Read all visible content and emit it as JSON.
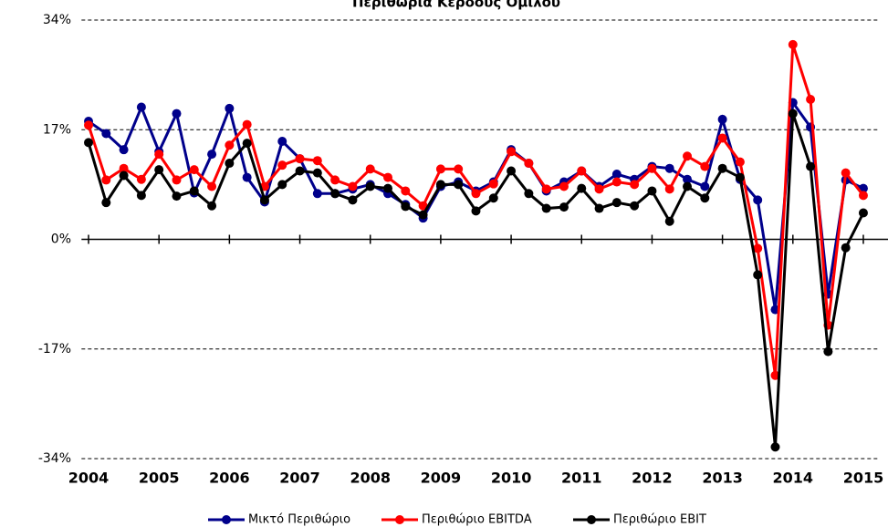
{
  "chart_data": {
    "type": "line",
    "title": "Περιθώρια Κέρδους Ομίλου",
    "x": [
      2004,
      2004.25,
      2004.5,
      2004.75,
      2005,
      2005.25,
      2005.5,
      2005.75,
      2006,
      2006.25,
      2006.5,
      2006.75,
      2007,
      2007.25,
      2007.5,
      2007.75,
      2008,
      2008.25,
      2008.5,
      2008.75,
      2009,
      2009.25,
      2009.5,
      2009.75,
      2010,
      2010.25,
      2010.5,
      2010.75,
      2011,
      2011.25,
      2011.5,
      2011.75,
      2012,
      2012.25,
      2012.5,
      2012.75,
      2013,
      2013.25,
      2013.5,
      2013.75,
      2014,
      2014.25,
      2014.5,
      2014.75,
      2015
    ],
    "series": [
      {
        "name": "Μικτό Περιθώριο",
        "color": "#00008b",
        "values": [
          18.3,
          16.4,
          13.9,
          20.5,
          13.6,
          19.5,
          7.2,
          13.2,
          20.3,
          9.6,
          5.8,
          15.2,
          12.5,
          7.1,
          7.1,
          7.8,
          8.5,
          7.1,
          5.4,
          3.3,
          8.2,
          8.9,
          7.5,
          8.9,
          13.9,
          11.8,
          7.5,
          8.9,
          10.6,
          8.2,
          10.1,
          9.3,
          11.3,
          11.0,
          9.3,
          8.2,
          18.6,
          9.3,
          6.1,
          -10.9,
          21.2,
          17.4,
          -8.5,
          9.2,
          7.9
        ]
      },
      {
        "name": "Περιθώριο EBITDA",
        "color": "#ff0000",
        "values": [
          17.7,
          9.2,
          11.0,
          9.3,
          13.2,
          9.2,
          10.8,
          8.2,
          14.6,
          17.8,
          8.2,
          11.5,
          12.5,
          12.2,
          9.2,
          8.2,
          10.9,
          9.6,
          7.5,
          5.2,
          10.9,
          10.9,
          7.1,
          8.6,
          13.6,
          11.8,
          7.8,
          8.2,
          10.6,
          7.8,
          8.9,
          8.5,
          11.0,
          7.8,
          12.9,
          11.3,
          15.7,
          12.0,
          -1.4,
          -21.1,
          30.2,
          21.7,
          -13.3,
          10.3,
          6.8
        ]
      },
      {
        "name": "Περιθώριο EBIT",
        "color": "#000000",
        "values": [
          15.0,
          5.7,
          9.9,
          6.8,
          10.8,
          6.7,
          7.5,
          5.2,
          11.8,
          14.9,
          6.1,
          8.5,
          10.6,
          10.3,
          7.1,
          6.1,
          8.2,
          7.9,
          5.1,
          3.8,
          8.5,
          8.5,
          4.4,
          6.4,
          10.6,
          7.1,
          4.8,
          5.0,
          7.9,
          4.8,
          5.7,
          5.2,
          7.5,
          2.8,
          8.2,
          6.4,
          11.0,
          9.6,
          -5.5,
          -32.2,
          19.5,
          11.3,
          -17.4,
          -1.3,
          4.1
        ]
      }
    ],
    "xlim": [
      2003.9,
      2015.2
    ],
    "xticks": [
      2004,
      2005,
      2006,
      2007,
      2008,
      2009,
      2010,
      2011,
      2012,
      2013,
      2014,
      2015
    ],
    "ylim": [
      -34,
      34
    ],
    "yticks": [
      {
        "value": -34,
        "label": "-34%"
      },
      {
        "value": -17,
        "label": "-17%"
      },
      {
        "value": 0,
        "label": "0%"
      },
      {
        "value": 17,
        "label": "17%"
      },
      {
        "value": 34,
        "label": "34%"
      }
    ],
    "grid": true
  }
}
